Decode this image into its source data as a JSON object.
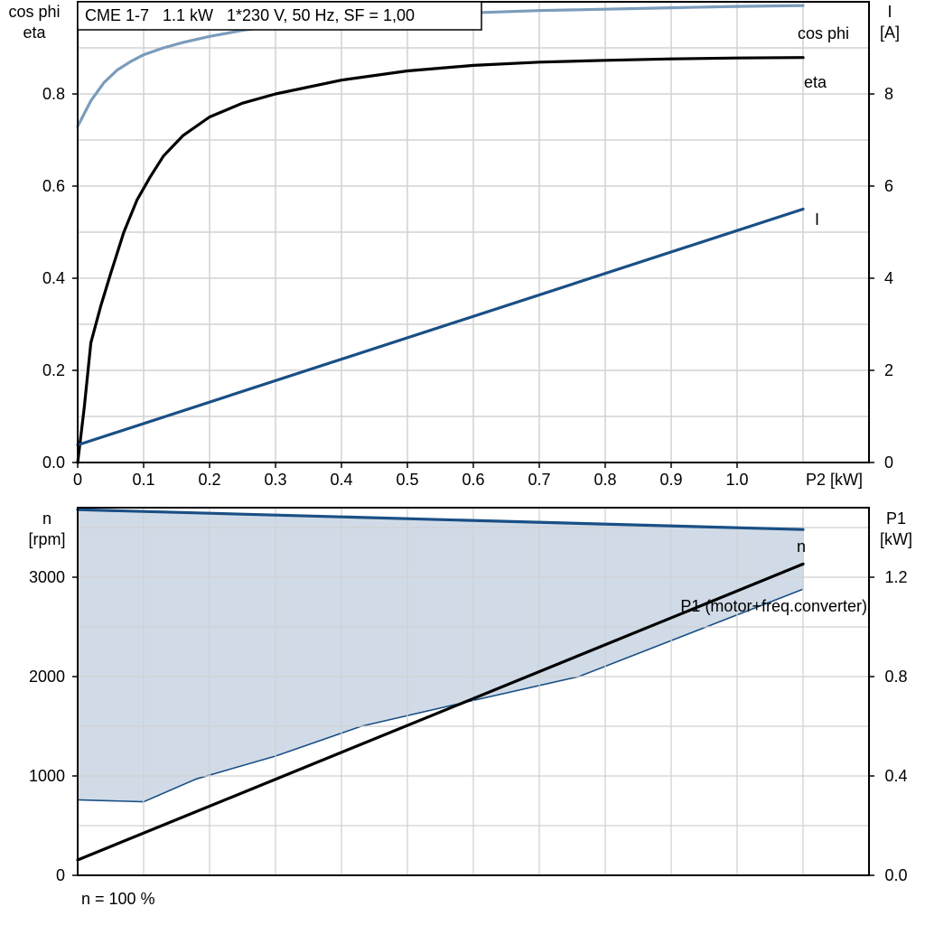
{
  "colors": {
    "cos_phi": "#7b9cbb",
    "eta": "#000000",
    "current": "#1a4f85",
    "speed": "#1a4f85",
    "band_fill": "#d0dbe7",
    "p1": "#000000",
    "grid": "#d2d2d2"
  },
  "chart_data": [
    {
      "type": "line",
      "title": "CME 1-7   1.1 kW   1*230 V, 50 Hz, SF = 1,00",
      "xlabel": "P2 [kW]",
      "ylabel_left": [
        "cos phi",
        "eta"
      ],
      "ylabel_right": [
        "I",
        "[A]"
      ],
      "xlim": [
        0,
        1.2
      ],
      "ylim_left": [
        0,
        1.0
      ],
      "ylim_right": [
        0,
        10
      ],
      "x_ticks": [
        "0",
        "0.1",
        "0.2",
        "0.3",
        "0.4",
        "0.5",
        "0.6",
        "0.7",
        "0.8",
        "0.9",
        "1.0"
      ],
      "x_tick_values": [
        0,
        0.1,
        0.2,
        0.3,
        0.4,
        0.5,
        0.6,
        0.7,
        0.8,
        0.9,
        1.0
      ],
      "y_ticks_left": [
        "0.0",
        "0.2",
        "0.4",
        "0.6",
        "0.8"
      ],
      "y_tick_values_left": [
        0,
        0.2,
        0.4,
        0.6,
        0.8
      ],
      "y_ticks_right": [
        "0",
        "2",
        "4",
        "6",
        "8"
      ],
      "y_tick_values_right": [
        0,
        2,
        4,
        6,
        8
      ],
      "grid": true,
      "series": [
        {
          "name": "cos phi",
          "axis": "left",
          "x": [
            0,
            0.02,
            0.04,
            0.06,
            0.08,
            0.1,
            0.13,
            0.16,
            0.2,
            0.25,
            0.3,
            0.4,
            0.5,
            0.6,
            0.7,
            0.8,
            0.9,
            1.0,
            1.1
          ],
          "y": [
            0.73,
            0.785,
            0.825,
            0.852,
            0.87,
            0.885,
            0.9,
            0.912,
            0.925,
            0.938,
            0.948,
            0.962,
            0.97,
            0.976,
            0.981,
            0.984,
            0.987,
            0.99,
            0.992
          ]
        },
        {
          "name": "eta",
          "axis": "left",
          "x": [
            0,
            0.01,
            0.02,
            0.035,
            0.05,
            0.07,
            0.09,
            0.11,
            0.13,
            0.16,
            0.2,
            0.25,
            0.3,
            0.4,
            0.5,
            0.6,
            0.7,
            0.8,
            0.9,
            1.0,
            1.1
          ],
          "y": [
            0,
            0.12,
            0.26,
            0.34,
            0.41,
            0.5,
            0.57,
            0.62,
            0.665,
            0.71,
            0.75,
            0.78,
            0.8,
            0.83,
            0.85,
            0.862,
            0.869,
            0.873,
            0.876,
            0.878,
            0.879
          ]
        },
        {
          "name": "I",
          "axis": "right",
          "x": [
            0,
            1.1
          ],
          "y": [
            0.38,
            5.5
          ]
        }
      ]
    },
    {
      "type": "line",
      "xlim": [
        0,
        1.2
      ],
      "ylabel_left": [
        "n",
        "[rpm]"
      ],
      "ylabel_right": [
        "P1",
        "[kW]"
      ],
      "ylim_left": [
        0,
        3700
      ],
      "ylim_right": [
        0,
        1.48
      ],
      "y_ticks_left": [
        "0",
        "1000",
        "2000",
        "3000"
      ],
      "y_tick_values_left": [
        0,
        1000,
        2000,
        3000
      ],
      "y_ticks_right": [
        "0.0",
        "0.4",
        "0.8",
        "1.2"
      ],
      "y_tick_values_right": [
        0,
        0.4,
        0.8,
        1.2
      ],
      "grid": true,
      "footnote": "n = 100 %",
      "band": {
        "upper_x": [
          0,
          1.1
        ],
        "upper_y": [
          3680,
          3480
        ],
        "lower_x": [
          0,
          0.1,
          0.18,
          0.3,
          0.43,
          0.6,
          0.76,
          1.1
        ],
        "lower_y": [
          760,
          740,
          970,
          1200,
          1500,
          1760,
          2000,
          2880
        ]
      },
      "series": [
        {
          "name": "n",
          "axis": "left",
          "x": [
            0,
            1.1
          ],
          "y": [
            3680,
            3480
          ]
        },
        {
          "name": "P1 (motor+freq.converter)",
          "axis": "right",
          "x": [
            0,
            1.1
          ],
          "y": [
            0.062,
            1.253
          ]
        }
      ]
    }
  ]
}
